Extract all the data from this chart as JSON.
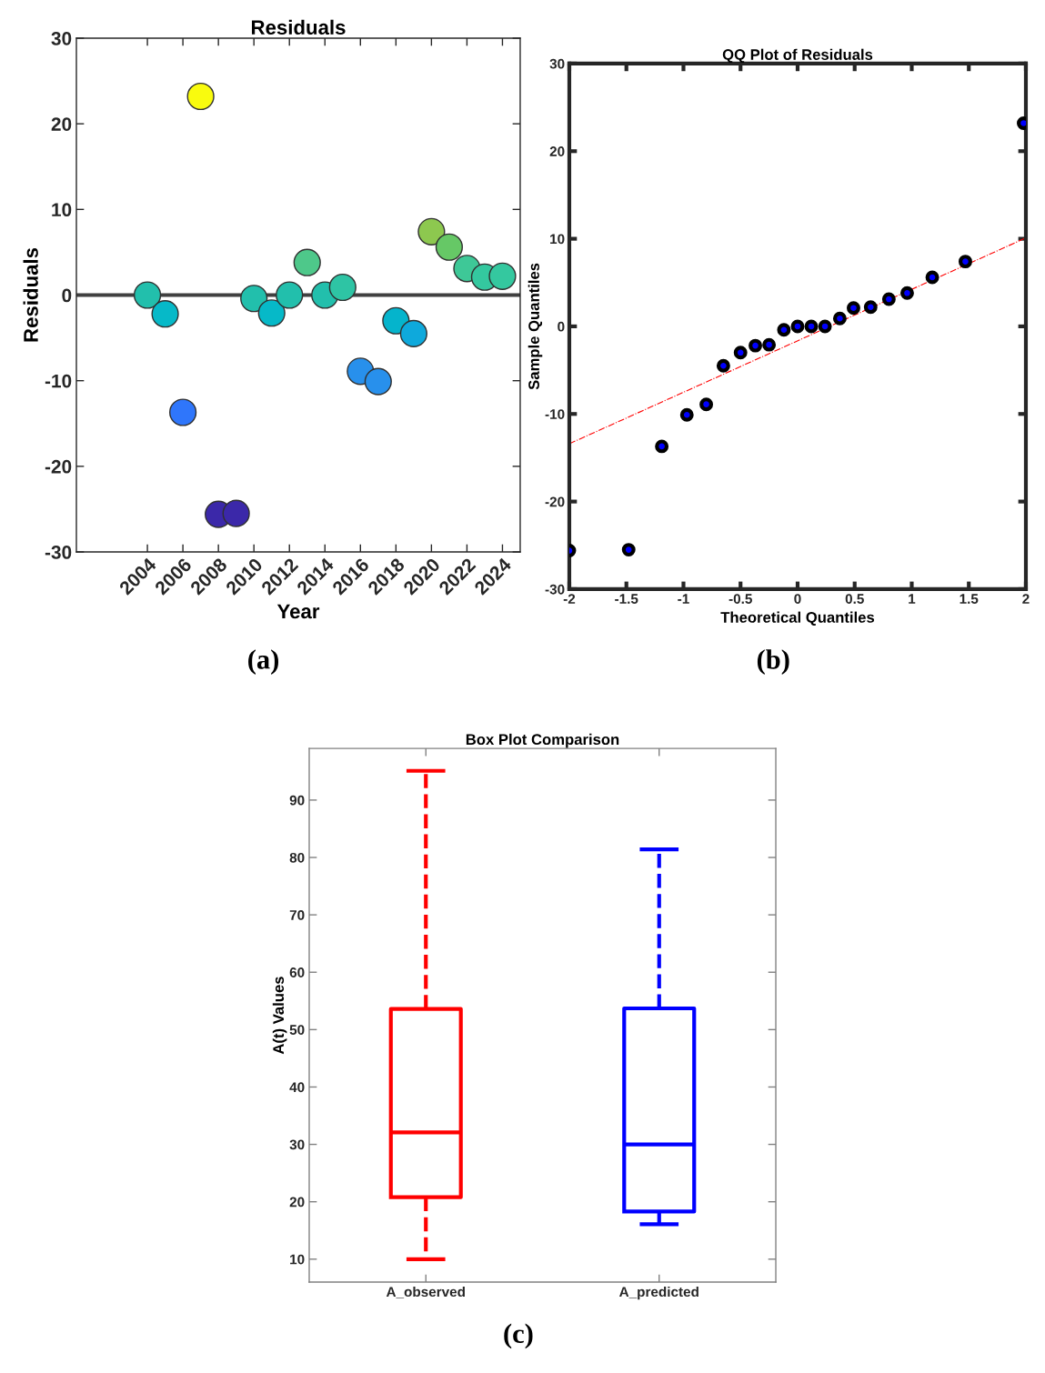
{
  "chart_data": [
    {
      "type": "scatter",
      "title": "Residuals",
      "xlabel": "Year",
      "ylabel": "Residuals",
      "x": [
        2004,
        2005,
        2006,
        2007,
        2008,
        2009,
        2010,
        2011,
        2012,
        2013,
        2014,
        2015,
        2016,
        2017,
        2018,
        2019,
        2020,
        2021,
        2022,
        2023,
        2024
      ],
      "values": [
        0,
        -2.2,
        -13.7,
        23.2,
        -25.6,
        -25.5,
        -0.4,
        -2.1,
        0,
        3.8,
        0,
        0.9,
        -8.9,
        -10.1,
        -3.0,
        -4.5,
        7.4,
        5.6,
        3.1,
        2.1,
        2.2
      ],
      "colors": [
        "#22bfac",
        "#06b9c8",
        "#2f76fb",
        "#f9fb0e",
        "#3b28a9",
        "#3b28a9",
        "#22bfac",
        "#06b9c8",
        "#22bfac",
        "#4ec88a",
        "#22bfac",
        "#2ec4a4",
        "#2890ec",
        "#2890ec",
        "#05b4cc",
        "#0ea9dc",
        "#8dc84f",
        "#66c866",
        "#3ec897",
        "#34c89f",
        "#34c89f"
      ],
      "marker": "circle",
      "xlim": [
        2000,
        2025
      ],
      "xticks": [
        2004,
        2006,
        2008,
        2010,
        2012,
        2014,
        2016,
        2018,
        2020,
        2022,
        2024
      ],
      "ylim": [
        -30,
        30
      ],
      "yticks": [
        -30,
        -20,
        -10,
        0,
        10,
        20,
        30
      ],
      "ref_lines": [
        {
          "axis": "y",
          "value": 0,
          "color": "#404040"
        }
      ],
      "grid": false,
      "annotations": [
        "(a)"
      ]
    },
    {
      "type": "scatter",
      "title": "QQ Plot of Residuals",
      "xlabel": "Theoretical Quantiles",
      "ylabel": "Sample Quantiles",
      "series": [
        {
          "type": "scatter",
          "color": "#0000ff",
          "marker": "circle",
          "x": [
            -2.0,
            -1.48,
            -1.19,
            -0.97,
            -0.8,
            -0.65,
            -0.5,
            -0.37,
            -0.25,
            -0.12,
            0,
            0.12,
            0.24,
            0.37,
            0.49,
            0.64,
            0.8,
            0.96,
            1.18,
            1.47,
            1.98
          ],
          "values": [
            -25.6,
            -25.5,
            -13.7,
            -10.1,
            -8.9,
            -4.5,
            -3.0,
            -2.2,
            -2.1,
            -0.4,
            0,
            0,
            0,
            0.9,
            2.1,
            2.2,
            3.1,
            3.8,
            5.6,
            7.4,
            23.2
          ]
        },
        {
          "type": "line",
          "color": "#ff0000",
          "line_style": "dashdot",
          "x": [
            -2,
            2
          ],
          "values": [
            -13.4,
            10.1
          ]
        }
      ],
      "xlim": [
        -2,
        2
      ],
      "xticks": [
        -2,
        -1.5,
        -1,
        -0.5,
        0,
        0.5,
        1,
        1.5,
        2
      ],
      "ylim": [
        -30,
        30
      ],
      "yticks": [
        -30,
        -20,
        -10,
        0,
        10,
        20,
        30
      ],
      "grid": false,
      "annotations": [
        "(b)"
      ]
    },
    {
      "type": "box",
      "title": "Box Plot Comparison",
      "ylabel": "A(t) Values",
      "categories": [
        "A_observed",
        "A_predicted"
      ],
      "boxes": [
        {
          "low": 10,
          "q1": 20.8,
          "median": 32.1,
          "q3": 53.6,
          "high": 95.1
        },
        {
          "low": 16.1,
          "q1": 18.3,
          "median": 30.0,
          "q3": 53.7,
          "high": 81.4
        }
      ],
      "colors": [
        "#ff0000",
        "#0000ff"
      ],
      "line_style": "dashed",
      "ylim": [
        6,
        99
      ],
      "yticks": [
        10,
        20,
        30,
        40,
        50,
        60,
        70,
        80,
        90
      ],
      "grid": false,
      "annotations": [
        "(c)"
      ]
    }
  ]
}
